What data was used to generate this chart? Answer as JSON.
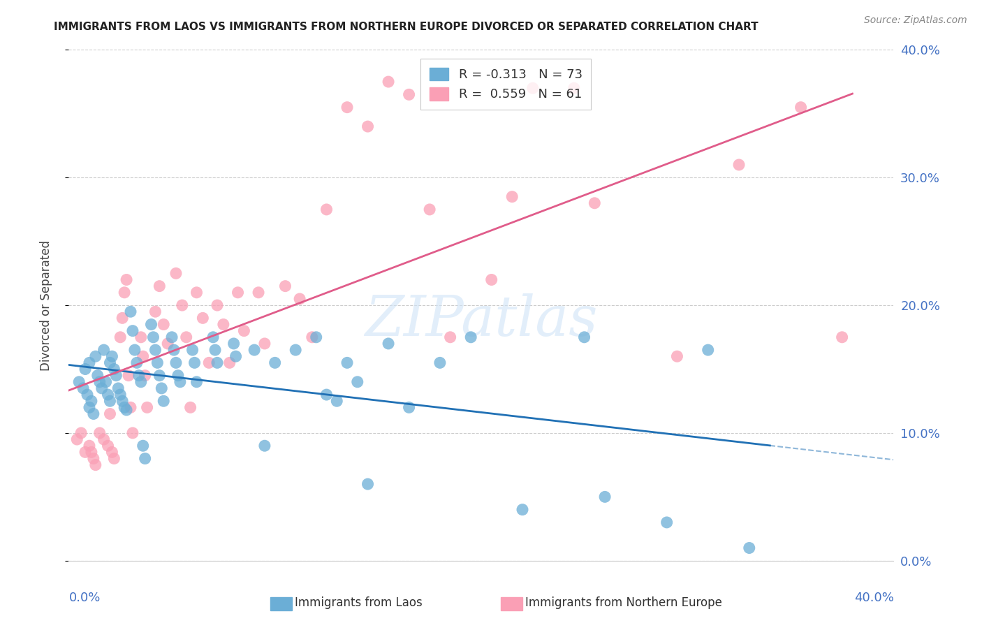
{
  "title": "IMMIGRANTS FROM LAOS VS IMMIGRANTS FROM NORTHERN EUROPE DIVORCED OR SEPARATED CORRELATION CHART",
  "source": "Source: ZipAtlas.com",
  "ylabel": "Divorced or Separated",
  "watermark": "ZIPatlas",
  "xlim": [
    0.0,
    0.4
  ],
  "ylim": [
    0.0,
    0.4
  ],
  "ytick_values": [
    0.0,
    0.1,
    0.2,
    0.3,
    0.4
  ],
  "xtick_values": [
    0.0,
    0.1,
    0.2,
    0.3,
    0.4
  ],
  "laos_R": -0.313,
  "laos_N": 73,
  "northern_europe_R": 0.559,
  "northern_europe_N": 61,
  "laos_color": "#6baed6",
  "northern_europe_color": "#fa9fb5",
  "laos_line_color": "#2171b5",
  "northern_europe_line_color": "#e05c8a",
  "legend_laos_label": "Immigrants from Laos",
  "legend_ne_label": "Immigrants from Northern Europe",
  "background_color": "#ffffff",
  "grid_color": "#cccccc",
  "right_tick_color": "#4472c4",
  "laos_scatter_x": [
    0.005,
    0.007,
    0.008,
    0.009,
    0.01,
    0.01,
    0.011,
    0.012,
    0.013,
    0.014,
    0.015,
    0.016,
    0.017,
    0.018,
    0.019,
    0.02,
    0.02,
    0.021,
    0.022,
    0.023,
    0.024,
    0.025,
    0.026,
    0.027,
    0.028,
    0.03,
    0.031,
    0.032,
    0.033,
    0.034,
    0.035,
    0.036,
    0.037,
    0.04,
    0.041,
    0.042,
    0.043,
    0.044,
    0.045,
    0.046,
    0.05,
    0.051,
    0.052,
    0.053,
    0.054,
    0.06,
    0.061,
    0.062,
    0.07,
    0.071,
    0.072,
    0.08,
    0.081,
    0.09,
    0.095,
    0.1,
    0.11,
    0.12,
    0.125,
    0.13,
    0.135,
    0.14,
    0.145,
    0.155,
    0.165,
    0.18,
    0.195,
    0.22,
    0.25,
    0.26,
    0.29,
    0.31,
    0.33
  ],
  "laos_scatter_y": [
    0.14,
    0.135,
    0.15,
    0.13,
    0.155,
    0.12,
    0.125,
    0.115,
    0.16,
    0.145,
    0.14,
    0.135,
    0.165,
    0.14,
    0.13,
    0.155,
    0.125,
    0.16,
    0.15,
    0.145,
    0.135,
    0.13,
    0.125,
    0.12,
    0.118,
    0.195,
    0.18,
    0.165,
    0.155,
    0.145,
    0.14,
    0.09,
    0.08,
    0.185,
    0.175,
    0.165,
    0.155,
    0.145,
    0.135,
    0.125,
    0.175,
    0.165,
    0.155,
    0.145,
    0.14,
    0.165,
    0.155,
    0.14,
    0.175,
    0.165,
    0.155,
    0.17,
    0.16,
    0.165,
    0.09,
    0.155,
    0.165,
    0.175,
    0.13,
    0.125,
    0.155,
    0.14,
    0.06,
    0.17,
    0.12,
    0.155,
    0.175,
    0.04,
    0.175,
    0.05,
    0.03,
    0.165,
    0.01
  ],
  "ne_scatter_x": [
    0.004,
    0.006,
    0.008,
    0.01,
    0.011,
    0.012,
    0.013,
    0.015,
    0.017,
    0.019,
    0.02,
    0.021,
    0.022,
    0.025,
    0.026,
    0.027,
    0.028,
    0.029,
    0.03,
    0.031,
    0.035,
    0.036,
    0.037,
    0.038,
    0.042,
    0.044,
    0.046,
    0.048,
    0.052,
    0.055,
    0.057,
    0.059,
    0.062,
    0.065,
    0.068,
    0.072,
    0.075,
    0.078,
    0.082,
    0.085,
    0.092,
    0.095,
    0.105,
    0.112,
    0.118,
    0.125,
    0.135,
    0.145,
    0.155,
    0.165,
    0.175,
    0.185,
    0.205,
    0.215,
    0.225,
    0.245,
    0.255,
    0.295,
    0.325,
    0.355,
    0.375
  ],
  "ne_scatter_y": [
    0.095,
    0.1,
    0.085,
    0.09,
    0.085,
    0.08,
    0.075,
    0.1,
    0.095,
    0.09,
    0.115,
    0.085,
    0.08,
    0.175,
    0.19,
    0.21,
    0.22,
    0.145,
    0.12,
    0.1,
    0.175,
    0.16,
    0.145,
    0.12,
    0.195,
    0.215,
    0.185,
    0.17,
    0.225,
    0.2,
    0.175,
    0.12,
    0.21,
    0.19,
    0.155,
    0.2,
    0.185,
    0.155,
    0.21,
    0.18,
    0.21,
    0.17,
    0.215,
    0.205,
    0.175,
    0.275,
    0.355,
    0.34,
    0.375,
    0.365,
    0.275,
    0.175,
    0.22,
    0.285,
    0.37,
    0.37,
    0.28,
    0.16,
    0.31,
    0.355,
    0.175
  ]
}
